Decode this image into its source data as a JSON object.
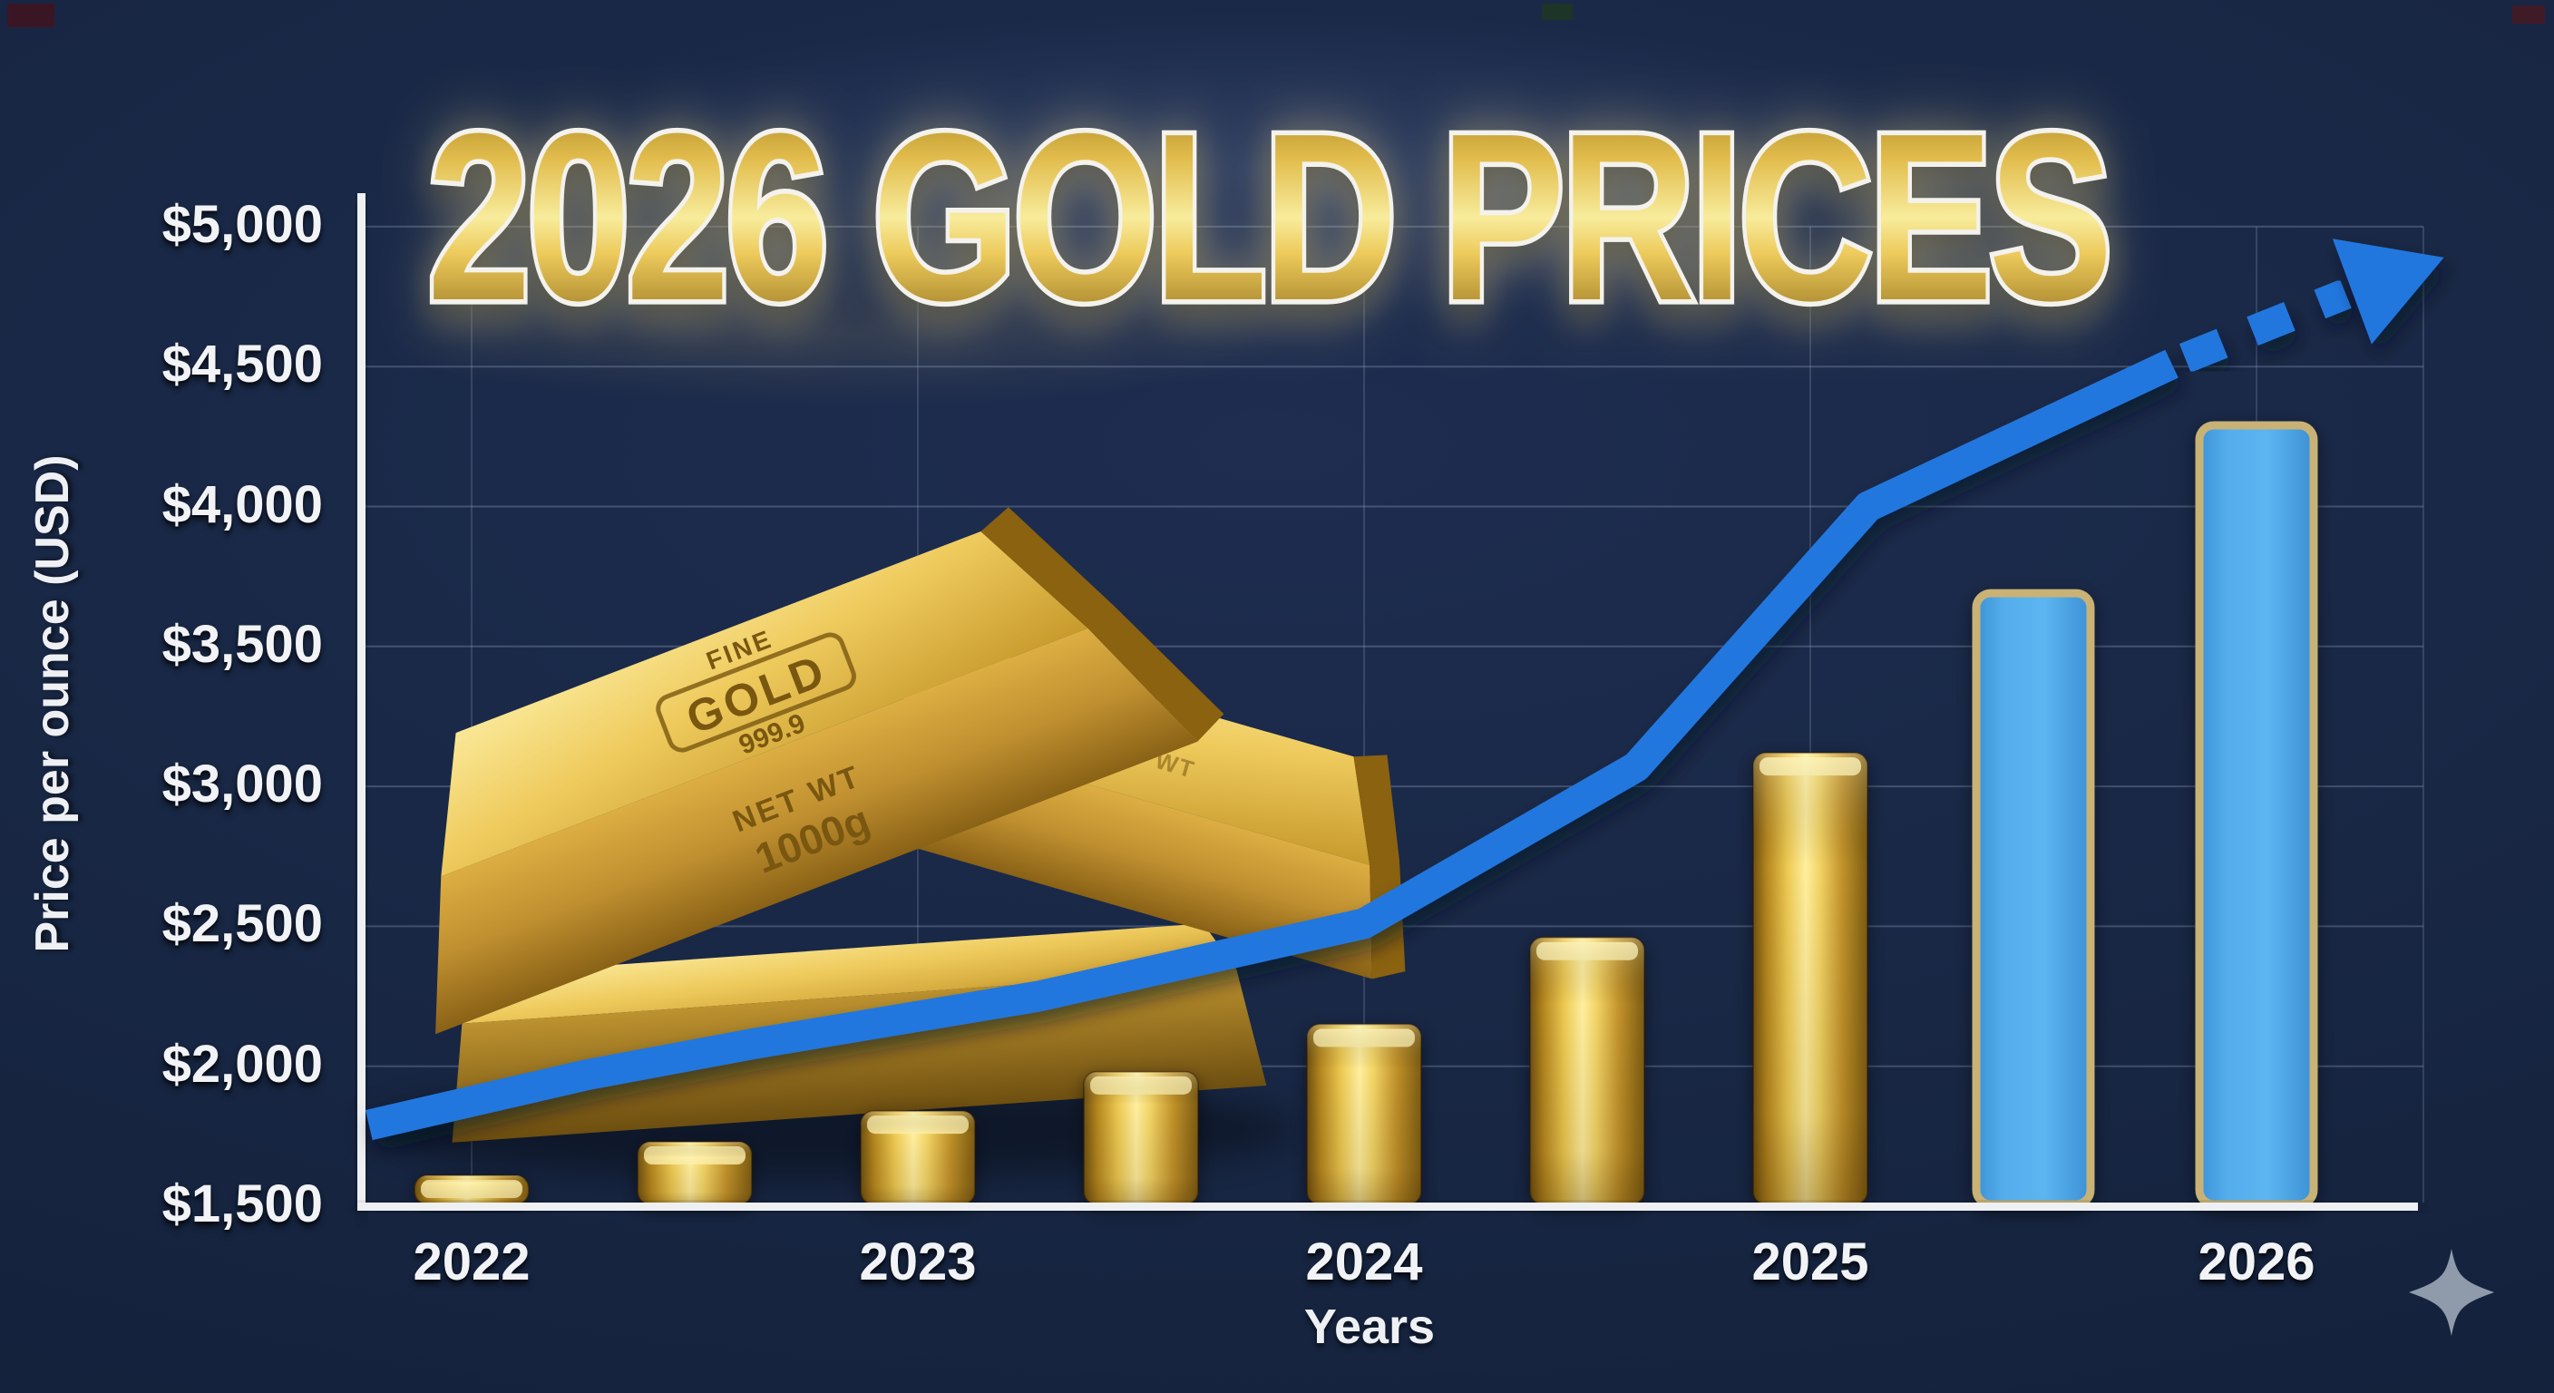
{
  "title": {
    "text": "2026 GOLD PRICES"
  },
  "chart_data": {
    "type": "bar",
    "title": "2026 GOLD PRICES",
    "xlabel": "Years",
    "ylabel": "Price per ounce (USD)",
    "x_tick_labels": [
      "2022",
      "2023",
      "2024",
      "2025",
      "2026"
    ],
    "y_tick_labels": [
      "$1,500",
      "$2,000",
      "$2,500",
      "$3,000",
      "$3,500",
      "$4,000",
      "$4,500",
      "$5,000"
    ],
    "ylim": [
      1500,
      5000
    ],
    "y_tick_step": 500,
    "grid": true,
    "legend": "none",
    "bars": {
      "x_years": [
        2022,
        2022.5,
        2023,
        2023.5,
        2024,
        2024.5,
        2025,
        2025.5,
        2026
      ],
      "values": [
        1610,
        1730,
        1840,
        1980,
        2150,
        2460,
        3120,
        3690,
        4290
      ],
      "styles": [
        "gold",
        "gold",
        "gold",
        "gold",
        "gold",
        "gold",
        "gold",
        "blue",
        "blue"
      ]
    },
    "trend_line": {
      "type": "line",
      "style": "solid then dashed with arrow",
      "points_year_value": [
        [
          2021.77,
          1790
        ],
        [
          2022.26,
          1970
        ],
        [
          2022.63,
          2080
        ],
        [
          2023.27,
          2250
        ],
        [
          2024.0,
          2510
        ],
        [
          2024.61,
          3070
        ],
        [
          2025.13,
          4000
        ],
        [
          2025.81,
          4510
        ]
      ],
      "dashed_segment_year_value": [
        [
          2025.84,
          4530
        ],
        [
          2026.2,
          4760
        ]
      ],
      "arrow_tip_year_value": [
        2026.42,
        4890
      ]
    }
  },
  "ingot_labels": {
    "fine": "FINE",
    "gold": "GOLD",
    "purity": "999.9",
    "net_wt": "NET WT",
    "weight": "1000g"
  },
  "colors": {
    "background": "#16233e",
    "gold_accent": "#e7c04a",
    "blue_bar": "#4da8e8",
    "blue_bar_border": "#c9b275",
    "trend_blue": "#2277de",
    "grid": "#aabbd4",
    "axis_white": "#eef0f3",
    "sparkle_gray": "#9aa5b4"
  }
}
